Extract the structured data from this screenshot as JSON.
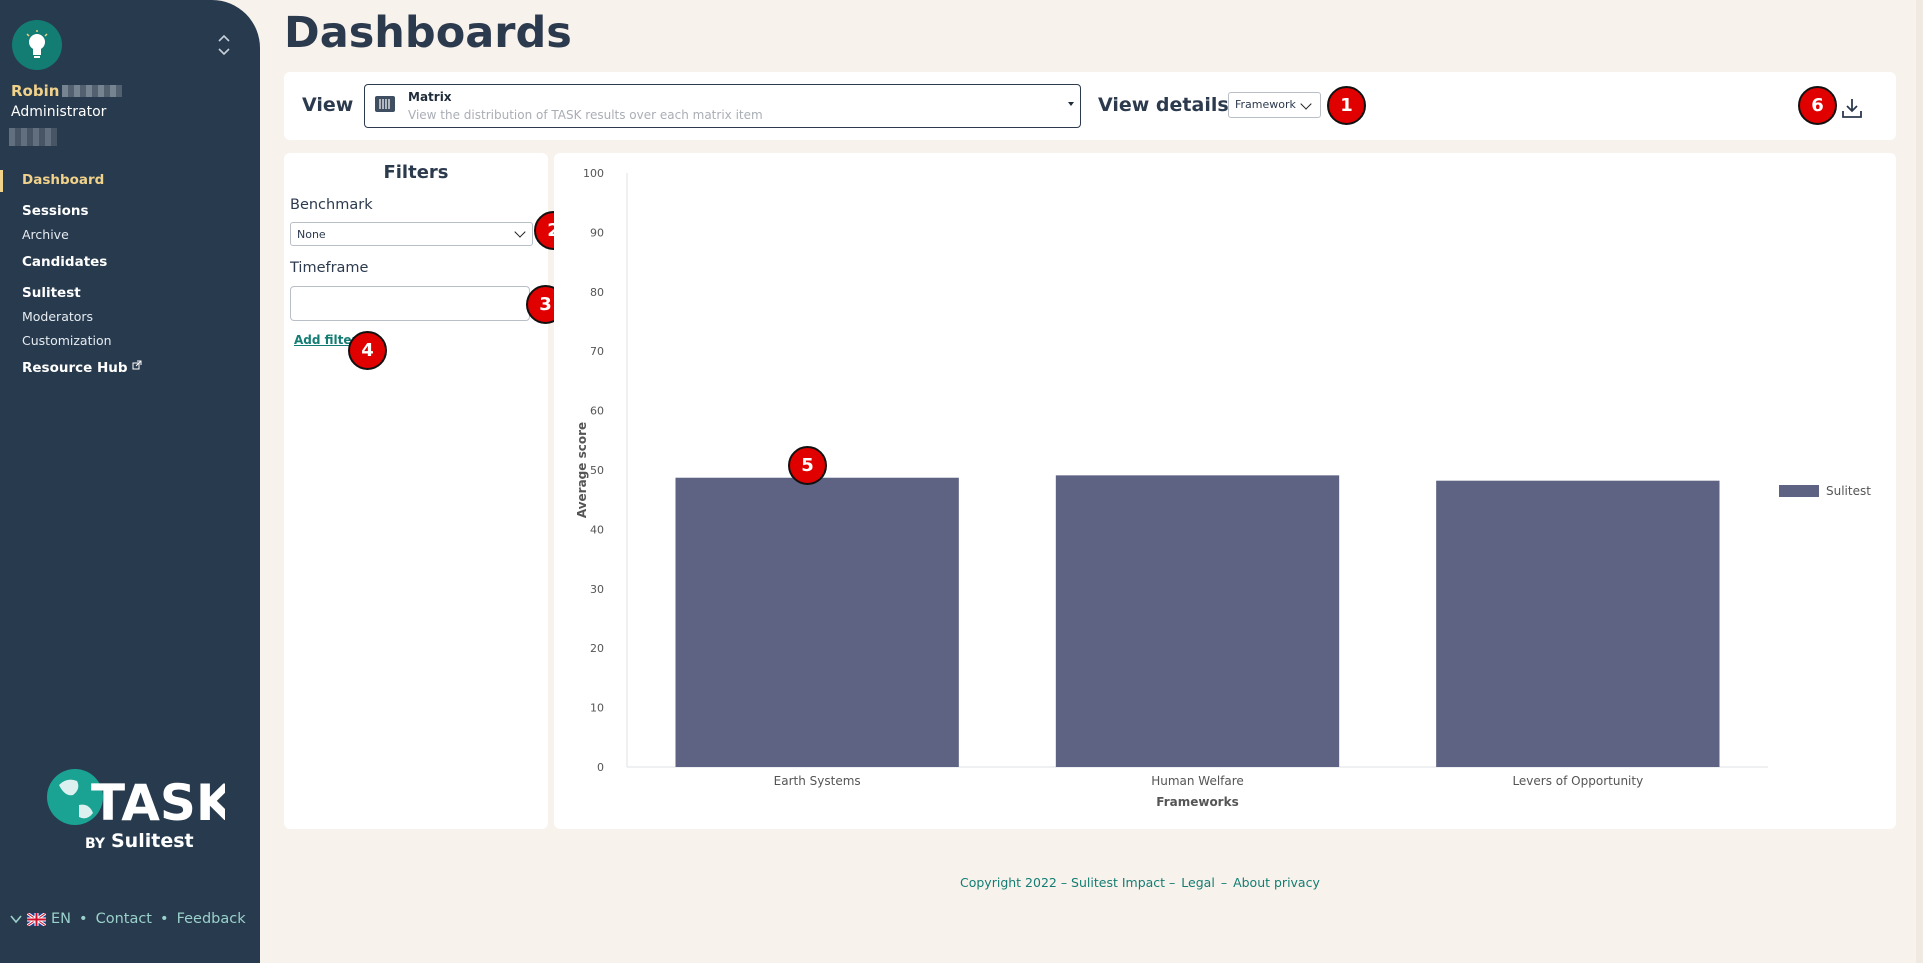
{
  "page": {
    "title": "Dashboards"
  },
  "sidebar": {
    "user_name": "Robin",
    "user_role": "Administrator",
    "nav": {
      "dashboard": "Dashboard",
      "sessions": "Sessions",
      "archive": "Archive",
      "candidates": "Candidates",
      "sulitest": "Sulitest",
      "moderators": "Moderators",
      "customization": "Customization",
      "resource_hub": "Resource Hub"
    },
    "logo": {
      "word": "TASK",
      "by": "BY",
      "brand": "Sulitest"
    },
    "footer": {
      "lang": "EN",
      "contact": "Contact",
      "feedback": "Feedback",
      "separator": "•"
    }
  },
  "toolbar": {
    "view_label": "View",
    "view_value": "Matrix",
    "view_description": "View the distribution of TASK results over each matrix item",
    "details_label": "View details",
    "details_value": "Framework"
  },
  "filters": {
    "title": "Filters",
    "benchmark_label": "Benchmark",
    "benchmark_value": "None",
    "timeframe_label": "Timeframe",
    "timeframe_value": "",
    "add_filter": "Add filter"
  },
  "markers": {
    "m1": "1",
    "m2": "2",
    "m3": "3",
    "m4": "4",
    "m5": "5",
    "m6": "6"
  },
  "chart_data": {
    "type": "bar",
    "categories": [
      "Earth Systems",
      "Human Welfare",
      "Levers of Opportunity"
    ],
    "series": [
      {
        "name": "Sulitest",
        "values": [
          48.7,
          49.1,
          48.2
        ],
        "color": "#5f6383"
      }
    ],
    "xlabel": "Frameworks",
    "ylabel": "Average score",
    "ylim": [
      0,
      100
    ],
    "yticks": [
      0,
      10,
      20,
      30,
      40,
      50,
      60,
      70,
      80,
      90,
      100
    ],
    "legend": "right",
    "grid": false
  },
  "footer": {
    "copyright": "Copyright 2022 – Sulitest Impact –",
    "legal": "Legal",
    "dash": "–",
    "privacy": "About privacy"
  },
  "colors": {
    "sidebar": "#283a4d",
    "accent": "#137d73",
    "active": "#f1d28a",
    "marker": "#e10000"
  }
}
